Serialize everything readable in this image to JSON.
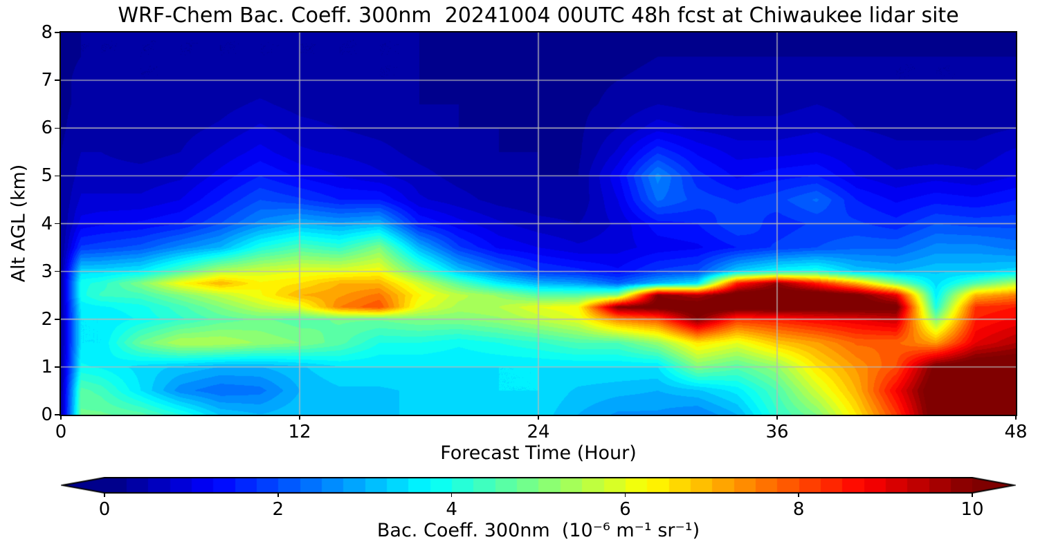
{
  "chart_data": {
    "type": "heatmap",
    "title": "WRF-Chem Bac. Coeff. 300nm  20241004 00UTC 48h fcst at Chiwaukee lidar site",
    "colormap": "jet",
    "grid": true,
    "grid_color": "#b9b9b9",
    "x_axis": {
      "label": "Forecast Time (Hour)",
      "range": [
        0,
        48
      ],
      "ticks": [
        0,
        12,
        24,
        36,
        48
      ],
      "gridlines": [
        12,
        24,
        36
      ]
    },
    "y_axis": {
      "label": "Alt AGL (km)",
      "range": [
        0,
        8
      ],
      "ticks": [
        0,
        1,
        2,
        3,
        4,
        5,
        6,
        7,
        8
      ],
      "gridlines": [
        1,
        2,
        3,
        4,
        5,
        6,
        7
      ]
    },
    "colorbar": {
      "label": "Bac. Coeff. 300nm  (10⁻⁶ m⁻¹ sr⁻¹)",
      "range": [
        0,
        10
      ],
      "ticks": [
        0,
        2,
        4,
        6,
        8,
        10
      ],
      "extend": "both"
    },
    "units": "1e-6 m-1 sr-1",
    "x_hours": [
      0,
      1,
      2,
      4,
      6,
      8,
      10,
      12,
      14,
      16,
      18,
      20,
      22,
      24,
      26,
      28,
      30,
      32,
      34,
      36,
      38,
      40,
      42,
      44,
      46,
      48
    ],
    "y_km": [
      0,
      0.5,
      1,
      1.5,
      2,
      2.25,
      2.5,
      2.75,
      3,
      3.5,
      4,
      4.5,
      5,
      5.5,
      6,
      6.5,
      7,
      7.5,
      8
    ],
    "values": [
      [
        0.4,
        0.35,
        0.3,
        0.3,
        0.3,
        0.3,
        0.3,
        0.3,
        0.3,
        0.25,
        0.25,
        0.25,
        0.25,
        0.25,
        0.2,
        0.2,
        0.2,
        0.2,
        0.2
      ],
      [
        4.8,
        4.6,
        3.8,
        3.5,
        3.5,
        3.6,
        3.9,
        3.9,
        3.4,
        1.8,
        1.1,
        0.8,
        0.6,
        0.5,
        0.4,
        0.3,
        0.3,
        0.25,
        0.25
      ],
      [
        4.8,
        4.4,
        3.7,
        3.5,
        3.5,
        3.7,
        4.3,
        4.1,
        3.4,
        1.9,
        1.2,
        0.8,
        0.6,
        0.5,
        0.4,
        0.3,
        0.3,
        0.25,
        0.25
      ],
      [
        4.6,
        3.5,
        3.4,
        4.8,
        3.8,
        3.9,
        4.4,
        5.0,
        3.6,
        2.1,
        1.3,
        0.8,
        0.6,
        0.4,
        0.3,
        0.3,
        0.25,
        0.25,
        0.25
      ],
      [
        4.0,
        2.6,
        3.2,
        5.5,
        4.2,
        4.4,
        5.0,
        6.2,
        4.5,
        2.6,
        1.5,
        1.0,
        0.7,
        0.5,
        0.4,
        0.3,
        0.25,
        0.25,
        0.25
      ],
      [
        3.2,
        2.3,
        3.0,
        5.5,
        4.6,
        5.0,
        5.6,
        7.0,
        5.5,
        3.0,
        2.0,
        1.5,
        1.1,
        0.8,
        0.55,
        0.4,
        0.3,
        0.25,
        0.25
      ],
      [
        3.0,
        2.4,
        3.0,
        5.2,
        4.8,
        5.6,
        6.2,
        6.3,
        5.8,
        4.0,
        2.6,
        2.0,
        1.5,
        1.1,
        0.8,
        0.55,
        0.35,
        0.25,
        0.25
      ],
      [
        3.2,
        3.0,
        3.2,
        5.0,
        4.6,
        6.0,
        7.0,
        6.5,
        6.0,
        4.5,
        3.0,
        1.8,
        1.2,
        0.8,
        0.6,
        0.4,
        0.3,
        0.25,
        0.25
      ],
      [
        3.2,
        3.2,
        3.5,
        4.6,
        4.8,
        7.5,
        7.2,
        7.0,
        6.0,
        4.2,
        2.8,
        1.5,
        1.0,
        0.7,
        0.5,
        0.35,
        0.3,
        0.25,
        0.25
      ],
      [
        3.2,
        3.2,
        3.5,
        4.0,
        4.8,
        8.0,
        7.6,
        7.0,
        6.2,
        5.0,
        3.0,
        1.5,
        0.8,
        0.6,
        0.4,
        0.3,
        0.25,
        0.25,
        0.25
      ],
      [
        3.3,
        3.3,
        3.5,
        4.0,
        5.0,
        6.0,
        6.3,
        5.8,
        4.6,
        3.0,
        1.5,
        0.8,
        0.6,
        0.4,
        0.3,
        0.25,
        0.25,
        0.25,
        0.25
      ],
      [
        3.3,
        3.4,
        3.5,
        3.8,
        5.0,
        5.4,
        5.6,
        4.6,
        3.2,
        1.8,
        1.1,
        0.6,
        0.4,
        0.3,
        0.25,
        0.25,
        0.2,
        0.2,
        0.2
      ],
      [
        3.4,
        3.5,
        3.5,
        4.0,
        5.2,
        5.5,
        5.2,
        3.6,
        2.4,
        1.2,
        0.8,
        0.4,
        0.3,
        0.25,
        0.25,
        0.2,
        0.2,
        0.2,
        0.2
      ],
      [
        3.4,
        3.5,
        3.5,
        4.2,
        5.6,
        6.0,
        4.6,
        3.0,
        1.8,
        1.0,
        0.6,
        0.3,
        0.25,
        0.25,
        0.2,
        0.2,
        0.2,
        0.2,
        0.2
      ],
      [
        3.0,
        3.2,
        3.5,
        4.5,
        6.0,
        6.2,
        4.6,
        2.8,
        1.6,
        0.8,
        0.5,
        0.3,
        0.25,
        0.2,
        0.2,
        0.2,
        0.2,
        0.2,
        0.2
      ],
      [
        2.7,
        3.1,
        3.5,
        4.5,
        7.5,
        10.0,
        5.0,
        2.2,
        1.3,
        0.9,
        0.8,
        1.0,
        1.2,
        0.8,
        0.5,
        0.3,
        0.25,
        0.2,
        0.2
      ],
      [
        2.7,
        3.0,
        3.5,
        5.2,
        8.0,
        10.3,
        10.0,
        3.0,
        1.8,
        1.1,
        1.4,
        2.3,
        2.6,
        1.7,
        0.9,
        0.5,
        0.3,
        0.25,
        0.2
      ],
      [
        2.5,
        3.2,
        5.0,
        6.5,
        10.0,
        10.5,
        9.5,
        3.5,
        2.0,
        1.2,
        1.5,
        1.9,
        1.6,
        1.2,
        0.7,
        0.4,
        0.3,
        0.25,
        0.2
      ],
      [
        3.0,
        3.6,
        4.6,
        6.0,
        8.3,
        10.5,
        10.5,
        8.5,
        3.3,
        1.5,
        2.0,
        1.7,
        1.2,
        0.9,
        0.6,
        0.4,
        0.3,
        0.25,
        0.2
      ],
      [
        4.2,
        4.5,
        5.2,
        6.8,
        8.5,
        10.5,
        10.6,
        9.8,
        3.8,
        1.8,
        1.6,
        1.9,
        1.4,
        0.9,
        0.6,
        0.4,
        0.3,
        0.25,
        0.2
      ],
      [
        5.0,
        5.8,
        6.5,
        7.2,
        8.8,
        10.4,
        10.6,
        8.5,
        4.0,
        2.0,
        1.8,
        2.3,
        1.5,
        1.0,
        0.7,
        0.5,
        0.35,
        0.25,
        0.2
      ],
      [
        6.5,
        7.0,
        7.3,
        7.8,
        9.0,
        10.4,
        10.2,
        7.0,
        3.2,
        2.2,
        1.8,
        1.5,
        1.0,
        0.8,
        0.5,
        0.4,
        0.3,
        0.25,
        0.2
      ],
      [
        8.2,
        8.8,
        8.0,
        7.8,
        9.3,
        10.3,
        9.0,
        5.0,
        3.0,
        2.2,
        1.6,
        1.2,
        0.8,
        0.6,
        0.4,
        0.3,
        0.25,
        0.25,
        0.2
      ],
      [
        10.5,
        10.6,
        10.2,
        7.2,
        5.0,
        4.0,
        3.6,
        3.4,
        3.2,
        2.6,
        2.0,
        1.4,
        0.9,
        0.6,
        0.4,
        0.3,
        0.25,
        0.25,
        0.2
      ],
      [
        10.6,
        10.8,
        10.6,
        9.0,
        8.5,
        8.3,
        7.0,
        4.5,
        3.2,
        2.6,
        1.9,
        1.3,
        0.8,
        0.6,
        0.4,
        0.3,
        0.25,
        0.25,
        0.2
      ],
      [
        10.6,
        10.8,
        10.6,
        9.5,
        8.8,
        8.5,
        7.5,
        5.5,
        3.4,
        2.4,
        1.9,
        1.5,
        1.0,
        0.8,
        0.5,
        0.4,
        0.3,
        0.25,
        0.2
      ]
    ]
  }
}
